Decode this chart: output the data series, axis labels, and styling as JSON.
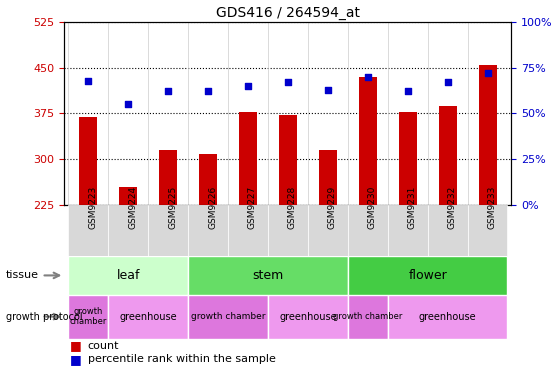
{
  "title": "GDS416 / 264594_at",
  "samples": [
    "GSM9223",
    "GSM9224",
    "GSM9225",
    "GSM9226",
    "GSM9227",
    "GSM9228",
    "GSM9229",
    "GSM9230",
    "GSM9231",
    "GSM9232",
    "GSM9233"
  ],
  "counts": [
    370,
    255,
    315,
    308,
    378,
    373,
    315,
    435,
    378,
    388,
    455
  ],
  "percentiles": [
    68,
    55,
    62,
    62,
    65,
    67,
    63,
    70,
    62,
    67,
    72
  ],
  "ylim_left": [
    225,
    525
  ],
  "ylim_right": [
    0,
    100
  ],
  "yticks_left": [
    225,
    300,
    375,
    450,
    525
  ],
  "yticks_right": [
    0,
    25,
    50,
    75,
    100
  ],
  "bar_color": "#cc0000",
  "dot_color": "#0000cc",
  "bar_bottom": 225,
  "tissue_data": [
    {
      "label": "leaf",
      "start": 0,
      "end": 3,
      "color": "#ccffcc"
    },
    {
      "label": "stem",
      "start": 3,
      "end": 7,
      "color": "#66dd66"
    },
    {
      "label": "flower",
      "start": 7,
      "end": 11,
      "color": "#44cc44"
    }
  ],
  "growth_data": [
    {
      "label": "growth\nchamber",
      "start": 0,
      "end": 1,
      "color": "#dd77dd",
      "fontsize": 6
    },
    {
      "label": "greenhouse",
      "start": 1,
      "end": 3,
      "color": "#ee99ee",
      "fontsize": 7
    },
    {
      "label": "growth chamber",
      "start": 3,
      "end": 5,
      "color": "#dd77dd",
      "fontsize": 6.5
    },
    {
      "label": "greenhouse",
      "start": 5,
      "end": 7,
      "color": "#ee99ee",
      "fontsize": 7
    },
    {
      "label": "growth chamber",
      "start": 7,
      "end": 8,
      "color": "#dd77dd",
      "fontsize": 6
    },
    {
      "label": "greenhouse",
      "start": 8,
      "end": 11,
      "color": "#ee99ee",
      "fontsize": 7
    }
  ],
  "background_color": "#ffffff",
  "tick_color_left": "#cc0000",
  "tick_color_right": "#0000cc",
  "chart_bg": "#ffffff"
}
